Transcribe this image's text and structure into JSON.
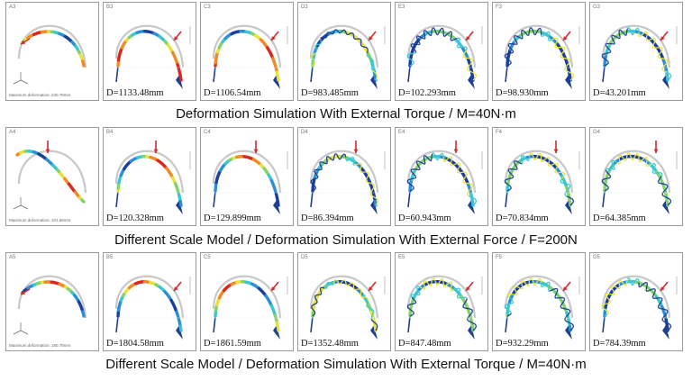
{
  "rows": [
    {
      "caption": "Deformation Simulation With External Torque / M=40N·m",
      "base_label": "A3",
      "base_note": "Maximum deformation: 230.78mm",
      "mode": "torque",
      "panels": [
        {
          "label": "B3",
          "d": "D=1133.48mm",
          "coil": 0
        },
        {
          "label": "C3",
          "d": "D=1106.54mm",
          "coil": 0
        },
        {
          "label": "D3",
          "d": "D=983.485mm",
          "coil": 0.5
        },
        {
          "label": "E3",
          "d": "D=102.293mm",
          "coil": 1
        },
        {
          "label": "F3",
          "d": "D=98.930mm",
          "coil": 1
        },
        {
          "label": "G3",
          "d": "D=43.201mm",
          "coil": 1
        }
      ]
    },
    {
      "caption": "Different Scale Model / Deformation Simulation With External Force / F=200N",
      "base_label": "A4",
      "base_note": "Maximum deformation: 101.88mm",
      "mode": "force",
      "panels": [
        {
          "label": "B4",
          "d": "D=120.328mm",
          "coil": 0
        },
        {
          "label": "C4",
          "d": "D=129.899mm",
          "coil": 0
        },
        {
          "label": "D4",
          "d": "D=86.394mm",
          "coil": 0.8
        },
        {
          "label": "E4",
          "d": "D=60.943mm",
          "coil": 1
        },
        {
          "label": "F4",
          "d": "D=70.834mm",
          "coil": 1
        },
        {
          "label": "G4",
          "d": "D=64.385mm",
          "coil": 1
        }
      ]
    },
    {
      "caption": "Different Scale Model / Deformation Simulation With External Torque / M=40N·m",
      "base_label": "A5",
      "base_note": "Maximum deformation: 180.78mm",
      "mode": "torque",
      "panels": [
        {
          "label": "B5",
          "d": "D=1804.58mm",
          "coil": 0
        },
        {
          "label": "C5",
          "d": "D=1861.59mm",
          "coil": 0
        },
        {
          "label": "D5",
          "d": "D=1352.48mm",
          "coil": 0.6
        },
        {
          "label": "E5",
          "d": "D=847.48mm",
          "coil": 1
        },
        {
          "label": "F5",
          "d": "D=932.29mm",
          "coil": 1
        },
        {
          "label": "G5",
          "d": "D=784.39mm",
          "coil": 1
        }
      ]
    }
  ],
  "colors": {
    "ghost": "#c8c8c8",
    "dark": "#1f3f8f",
    "arrow": "#d42a2a",
    "map": [
      "#1a3fa0",
      "#2a8fd8",
      "#39c7d2",
      "#7fd36a",
      "#e8e23a",
      "#f08a24",
      "#d8281f"
    ]
  }
}
